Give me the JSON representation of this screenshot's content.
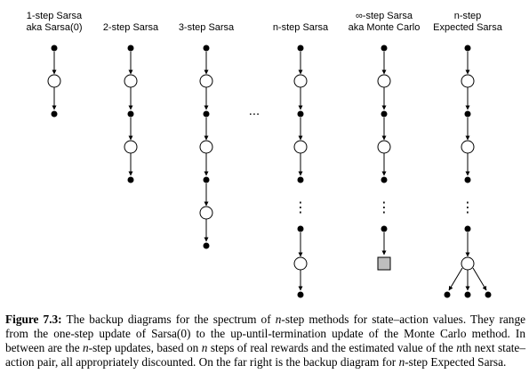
{
  "columns": [
    {
      "id": "one-step",
      "label_lines": [
        "1-step Sarsa",
        "aka Sarsa(0)"
      ]
    },
    {
      "id": "two-step",
      "label_lines": [
        "2-step Sarsa"
      ]
    },
    {
      "id": "three-step",
      "label_lines": [
        "3-step Sarsa"
      ]
    },
    {
      "id": "n-step",
      "label_lines": [
        "n-step Sarsa"
      ]
    },
    {
      "id": "monte-carlo",
      "label_lines": [
        "∞-step Sarsa",
        "aka Monte Carlo"
      ]
    },
    {
      "id": "expected",
      "label_lines": [
        "n-step",
        "Expected Sarsa"
      ]
    }
  ],
  "ellipsis": "···",
  "vertical_ellipsis": "⋮",
  "caption": {
    "label": "Figure 7.3:",
    "parts": [
      " The backup diagrams for the spectrum of ",
      "n",
      "-step methods for state–action values. They range from the one-step update of Sarsa(0) to the up-until-termination update of the Monte Carlo method. In between are the ",
      "n",
      "-step updates, based on ",
      "n",
      " steps of real rewards and the estimated value of the ",
      "n",
      "th next state–action pair, all appropriately discounted. On the far right is the backup diagram for ",
      "n",
      "-step Expected Sarsa."
    ]
  }
}
